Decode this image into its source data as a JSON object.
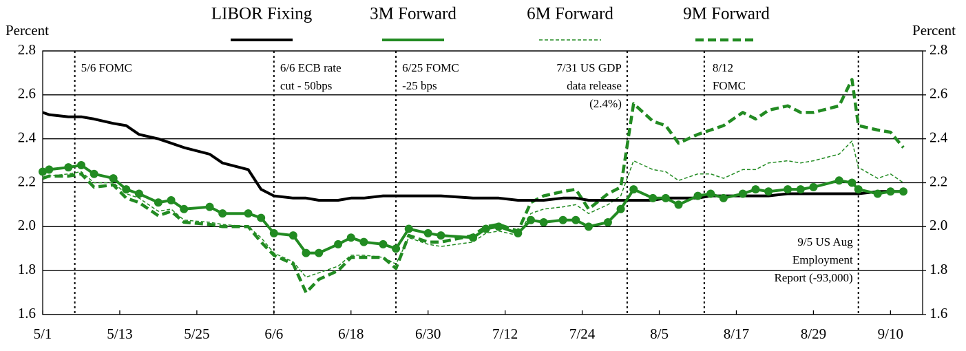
{
  "chart_data": {
    "type": "line",
    "ylabel": "Percent",
    "y2label": "Percent",
    "x": [
      "5/1",
      "5/2",
      "5/5",
      "5/7",
      "5/9",
      "5/12",
      "5/14",
      "5/16",
      "5/19",
      "5/21",
      "5/23",
      "5/27",
      "5/29",
      "6/2",
      "6/4",
      "6/6",
      "6/9",
      "6/11",
      "6/13",
      "6/16",
      "6/18",
      "6/20",
      "6/23",
      "6/25",
      "6/27",
      "6/30",
      "7/2",
      "7/7",
      "7/9",
      "7/11",
      "7/14",
      "7/16",
      "7/18",
      "7/21",
      "7/23",
      "7/25",
      "7/28",
      "7/30",
      "8/1",
      "8/4",
      "8/6",
      "8/8",
      "8/11",
      "8/13",
      "8/15",
      "8/18",
      "8/20",
      "8/22",
      "8/25",
      "8/27",
      "8/29",
      "9/2",
      "9/4",
      "9/5",
      "9/8",
      "9/10",
      "9/12"
    ],
    "xlim": [
      "5/1",
      "9/15"
    ],
    "xticks": [
      "5/1",
      "5/13",
      "5/25",
      "6/6",
      "6/18",
      "6/30",
      "7/12",
      "7/24",
      "8/5",
      "8/17",
      "8/29",
      "9/10"
    ],
    "ylim": [
      1.6,
      2.8
    ],
    "yticks": [
      1.6,
      1.8,
      {
        "value": 2,
        "label": "2.0"
      },
      2.2,
      2.4,
      2.6,
      2.8
    ],
    "y2lim": [
      1.6,
      2.8
    ],
    "y2ticks": [
      1.6,
      1.8,
      {
        "value": 2,
        "label": "2.0"
      },
      2.2,
      2.4,
      2.6,
      2.8
    ],
    "grid": true,
    "legend": "top",
    "series": [
      {
        "name": "LIBOR Fixing",
        "color": "#000000",
        "style": "solid",
        "width": 4,
        "markers": false,
        "values": [
          2.52,
          2.51,
          2.5,
          2.5,
          2.49,
          2.47,
          2.46,
          2.42,
          2.4,
          2.38,
          2.36,
          2.33,
          2.29,
          2.26,
          2.17,
          2.14,
          2.13,
          2.13,
          2.12,
          2.12,
          2.13,
          2.13,
          2.14,
          2.14,
          2.14,
          2.14,
          2.14,
          2.13,
          2.13,
          2.13,
          2.12,
          2.12,
          2.12,
          2.13,
          2.13,
          2.12,
          2.12,
          2.12,
          2.12,
          2.12,
          2.13,
          2.13,
          2.13,
          2.14,
          2.14,
          2.14,
          2.14,
          2.14,
          2.15,
          2.15,
          2.15,
          2.15,
          2.15,
          2.15,
          2.16,
          2.16,
          2.16
        ]
      },
      {
        "name": "3M Forward",
        "color": "#228b22",
        "style": "solid",
        "width": 4,
        "markers": true,
        "values": [
          2.25,
          2.26,
          2.27,
          2.28,
          2.24,
          2.22,
          2.17,
          2.15,
          2.11,
          2.12,
          2.08,
          2.09,
          2.06,
          2.06,
          2.04,
          1.97,
          1.96,
          1.88,
          1.88,
          1.92,
          1.95,
          1.93,
          1.92,
          1.9,
          1.99,
          1.97,
          1.96,
          1.95,
          1.99,
          2.0,
          1.97,
          2.03,
          2.02,
          2.03,
          2.03,
          2.0,
          2.02,
          2.08,
          2.17,
          2.13,
          2.13,
          2.1,
          2.14,
          2.15,
          2.13,
          2.15,
          2.17,
          2.16,
          2.17,
          2.17,
          2.18,
          2.21,
          2.2,
          2.17,
          2.15,
          2.16,
          2.16
        ]
      },
      {
        "name": "6M Forward",
        "color": "#228b22",
        "style": "dashed",
        "width": 1.5,
        "markers": false,
        "values": [
          2.22,
          2.23,
          2.24,
          2.25,
          2.2,
          2.2,
          2.15,
          2.13,
          2.07,
          2.08,
          2.03,
          2.02,
          2.01,
          2.0,
          1.95,
          1.88,
          1.84,
          1.77,
          1.79,
          1.82,
          1.87,
          1.87,
          1.86,
          1.83,
          1.95,
          1.92,
          1.91,
          1.93,
          1.97,
          1.98,
          1.96,
          2.06,
          2.08,
          2.09,
          2.1,
          2.06,
          2.1,
          2.14,
          2.3,
          2.26,
          2.25,
          2.21,
          2.24,
          2.24,
          2.22,
          2.26,
          2.26,
          2.29,
          2.3,
          2.29,
          2.3,
          2.33,
          2.39,
          2.27,
          2.22,
          2.24,
          2.2
        ]
      },
      {
        "name": "9M Forward",
        "color": "#228b22",
        "style": "dashed",
        "width": 4.5,
        "markers": false,
        "values": [
          2.22,
          2.23,
          2.23,
          2.24,
          2.18,
          2.19,
          2.13,
          2.11,
          2.05,
          2.07,
          2.02,
          2.01,
          2.0,
          2.0,
          1.93,
          1.87,
          1.83,
          1.7,
          1.76,
          1.8,
          1.86,
          1.86,
          1.86,
          1.81,
          1.96,
          1.93,
          1.93,
          1.96,
          2.0,
          2.01,
          1.98,
          2.11,
          2.14,
          2.16,
          2.17,
          2.08,
          2.15,
          2.18,
          2.56,
          2.48,
          2.46,
          2.38,
          2.42,
          2.44,
          2.46,
          2.52,
          2.49,
          2.53,
          2.55,
          2.52,
          2.52,
          2.55,
          2.67,
          2.46,
          2.44,
          2.43,
          2.36
        ]
      }
    ],
    "annotations": [
      {
        "date": "5/6",
        "lines": [
          "5/6 FOMC"
        ]
      },
      {
        "date": "6/6",
        "lines": [
          "6/6 ECB rate",
          "cut - 50bps"
        ]
      },
      {
        "date": "6/25",
        "lines": [
          "6/25 FOMC",
          "-25 bps"
        ]
      },
      {
        "date": "7/31",
        "lines": [
          "7/31 US GDP",
          "data release",
          "(2.4%)"
        ]
      },
      {
        "date": "8/12",
        "lines": [
          "8/12",
          "FOMC"
        ]
      },
      {
        "date": "9/5",
        "lines": [
          "9/5 US Aug",
          "Employment",
          "Report (-93,000)"
        ]
      }
    ]
  }
}
